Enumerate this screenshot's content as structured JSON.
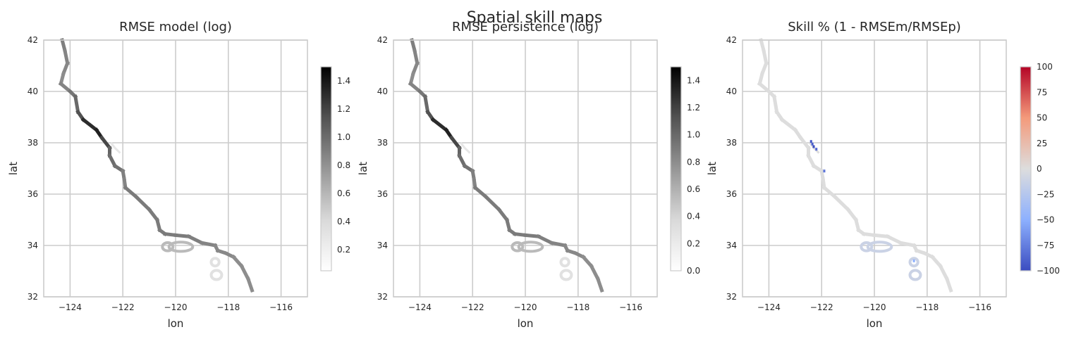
{
  "figure": {
    "suptitle": "Spatial skill maps"
  },
  "chart_data": [
    {
      "type": "heatmap",
      "title": "RMSE model (log)",
      "xlabel": "lon",
      "ylabel": "lat",
      "xlim": [
        -125,
        -115
      ],
      "ylim": [
        32,
        42
      ],
      "xticks": [
        "−124",
        "−122",
        "−120",
        "−118",
        "−116"
      ],
      "yticks": [
        "32",
        "34",
        "36",
        "38",
        "40",
        "42"
      ],
      "grid": true,
      "colormap": "Greys",
      "colorbar": {
        "range": [
          0.05,
          1.5
        ],
        "ticks": [
          "0.2",
          "0.4",
          "0.6",
          "0.8",
          "1.0",
          "1.2",
          "1.4"
        ]
      }
    },
    {
      "type": "heatmap",
      "title": "RMSE persistence (log)",
      "xlabel": "lon",
      "ylabel": "lat",
      "xlim": [
        -125,
        -115
      ],
      "ylim": [
        32,
        42
      ],
      "xticks": [
        "−124",
        "−122",
        "−120",
        "−118",
        "−116"
      ],
      "yticks": [
        "32",
        "34",
        "36",
        "38",
        "40",
        "42"
      ],
      "grid": true,
      "colormap": "Greys",
      "colorbar": {
        "range": [
          0,
          1.5
        ],
        "ticks": [
          "0.0",
          "0.2",
          "0.4",
          "0.6",
          "0.8",
          "1.0",
          "1.2",
          "1.4"
        ]
      }
    },
    {
      "type": "heatmap",
      "title": "Skill % (1 - RMSEm/RMSEp)",
      "xlabel": "lon",
      "ylabel": "lat",
      "xlim": [
        -125,
        -115
      ],
      "ylim": [
        32,
        42
      ],
      "xticks": [
        "−124",
        "−122",
        "−120",
        "−118",
        "−116"
      ],
      "yticks": [
        "32",
        "34",
        "36",
        "38",
        "40",
        "42"
      ],
      "grid": true,
      "colormap": "coolwarm",
      "colorbar": {
        "range": [
          -100,
          100
        ],
        "ticks": [
          "−100",
          "−75",
          "−50",
          "−25",
          "0",
          "25",
          "50",
          "75",
          "100"
        ]
      }
    }
  ],
  "map_data": {
    "coast_path": [
      [
        -124.3,
        42.0,
        0.9
      ],
      [
        -124.2,
        41.6,
        0.85
      ],
      [
        -124.1,
        41.1,
        0.85
      ],
      [
        -124.25,
        40.7,
        0.8
      ],
      [
        -124.35,
        40.3,
        0.8
      ],
      [
        -124.0,
        40.0,
        0.9
      ],
      [
        -123.8,
        39.8,
        0.95
      ],
      [
        -123.7,
        39.2,
        1.05
      ],
      [
        -123.5,
        38.9,
        1.2
      ],
      [
        -123.0,
        38.5,
        1.4
      ],
      [
        -122.8,
        38.2,
        1.3
      ],
      [
        -122.5,
        37.8,
        1.05
      ],
      [
        -122.5,
        37.5,
        1.0
      ],
      [
        -122.3,
        37.1,
        0.95
      ],
      [
        -122.0,
        36.9,
        0.95
      ],
      [
        -121.95,
        36.6,
        0.8
      ],
      [
        -121.9,
        36.25,
        0.9
      ],
      [
        -121.5,
        35.9,
        0.9
      ],
      [
        -121.0,
        35.4,
        0.9
      ],
      [
        -120.7,
        35.0,
        0.9
      ],
      [
        -120.6,
        34.6,
        0.9
      ],
      [
        -120.4,
        34.45,
        0.9
      ],
      [
        -120.0,
        34.4,
        0.9
      ],
      [
        -119.5,
        34.35,
        0.9
      ],
      [
        -119.0,
        34.1,
        0.85
      ],
      [
        -118.5,
        34.0,
        0.85
      ],
      [
        -118.4,
        33.8,
        0.8
      ],
      [
        -118.1,
        33.7,
        0.85
      ],
      [
        -117.8,
        33.55,
        0.8
      ],
      [
        -117.5,
        33.2,
        0.8
      ],
      [
        -117.25,
        32.7,
        0.8
      ],
      [
        -117.1,
        32.25,
        0.8
      ]
    ],
    "bay_path": [
      [
        -122.45,
        38.0,
        0.1
      ],
      [
        -122.3,
        37.8,
        0.1
      ],
      [
        -122.1,
        37.6,
        0.1
      ]
    ],
    "island_rings": [
      {
        "lon": -119.8,
        "lat": 33.95,
        "rx": 0.45,
        "ry": 0.18,
        "value": 0.55
      },
      {
        "lon": -120.3,
        "lat": 33.95,
        "rx": 0.2,
        "ry": 0.16,
        "value": 0.55
      },
      {
        "lon": -118.5,
        "lat": 33.35,
        "rx": 0.15,
        "ry": 0.15,
        "value": 0.3
      },
      {
        "lon": -118.45,
        "lat": 32.85,
        "rx": 0.2,
        "ry": 0.18,
        "value": 0.3
      }
    ],
    "skill_highlights": [
      {
        "lon": -122.4,
        "lat": 38.05,
        "value": -95
      },
      {
        "lon": -122.35,
        "lat": 37.95,
        "value": -90
      },
      {
        "lon": -122.3,
        "lat": 37.85,
        "value": -100
      },
      {
        "lon": -122.2,
        "lat": 37.75,
        "value": -85
      },
      {
        "lon": -121.9,
        "lat": 36.9,
        "value": -80
      },
      {
        "lon": -118.5,
        "lat": 33.4,
        "value": -50
      }
    ]
  }
}
